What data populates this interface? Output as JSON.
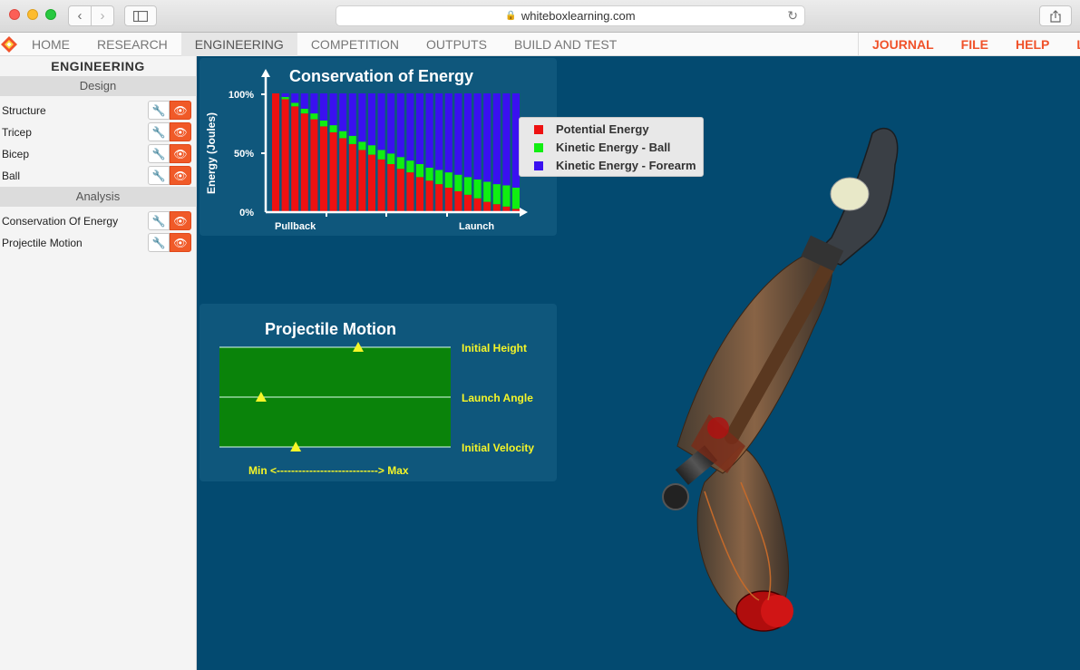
{
  "browser": {
    "url": "whiteboxlearning.com",
    "lock_icon": "lock-icon",
    "back_icon": "chevron-left-icon",
    "forward_icon": "chevron-right-icon",
    "sidebar_icon": "sidebar-toggle-icon",
    "share_icon": "share-icon",
    "reload_icon": "reload-icon"
  },
  "nav": {
    "items": [
      {
        "label": "HOME"
      },
      {
        "label": "RESEARCH"
      },
      {
        "label": "ENGINEERING",
        "active": true
      },
      {
        "label": "COMPETITION"
      },
      {
        "label": "OUTPUTS"
      },
      {
        "label": "BUILD AND TEST"
      }
    ],
    "right_items": [
      {
        "label": "JOURNAL"
      },
      {
        "label": "FILE"
      },
      {
        "label": "HELP"
      },
      {
        "label": "L"
      }
    ],
    "accent": "#f0522a"
  },
  "sidebar": {
    "title": "ENGINEERING",
    "sections": [
      {
        "label": "Design",
        "items": [
          {
            "label": "Structure"
          },
          {
            "label": "Tricep"
          },
          {
            "label": "Bicep"
          },
          {
            "label": "Ball"
          }
        ]
      },
      {
        "label": "Analysis",
        "items": [
          {
            "label": "Conservation Of Energy"
          },
          {
            "label": "Projectile Motion"
          }
        ]
      }
    ],
    "wrench_icon": "wrench-icon",
    "eye_icon": "eye-icon",
    "eye_color": "#f05a28"
  },
  "energy_panel": {
    "title": "Conservation of Energy",
    "legend": [
      {
        "label": "Potential Energy",
        "color": "#ee1111"
      },
      {
        "label": "Kinetic Energy - Ball",
        "color": "#11ee11"
      },
      {
        "label": "Kinetic Energy - Forearm",
        "color": "#3a10f0"
      }
    ]
  },
  "chart_data": {
    "type": "bar",
    "stacked": true,
    "title": "Conservation of Energy",
    "ylabel": "Energy (Joules)",
    "xlabel": "",
    "x_tick_labels": [
      "Pullback",
      "Launch"
    ],
    "y_tick_labels": [
      "100%",
      "50%",
      "0%"
    ],
    "ylim": [
      0,
      100
    ],
    "series": [
      {
        "name": "Potential Energy",
        "color": "#ee1111",
        "values": [
          100,
          95,
          89,
          83,
          78,
          72,
          67,
          62,
          57,
          52,
          48,
          44,
          40,
          36,
          33,
          29,
          26,
          23,
          20,
          17,
          14,
          11,
          8,
          6,
          4,
          2
        ]
      },
      {
        "name": "Kinetic Energy - Ball",
        "color": "#11ee11",
        "values": [
          0,
          2,
          3,
          4,
          5,
          5,
          6,
          6,
          7,
          7,
          8,
          8,
          9,
          10,
          10,
          11,
          11,
          12,
          13,
          14,
          15,
          16,
          17,
          17,
          18,
          18
        ]
      },
      {
        "name": "Kinetic Energy - Forearm",
        "color": "#3a10f0",
        "values": [
          0,
          3,
          8,
          13,
          17,
          23,
          27,
          32,
          36,
          41,
          44,
          48,
          51,
          54,
          57,
          60,
          63,
          65,
          67,
          69,
          71,
          73,
          75,
          77,
          78,
          80
        ]
      }
    ]
  },
  "projectile_panel": {
    "title": "Projectile Motion",
    "params": [
      {
        "label": "Initial Height",
        "value": 0.6
      },
      {
        "label": "Launch Angle",
        "value": 0.18
      },
      {
        "label": "Initial Velocity",
        "value": 0.33
      }
    ],
    "axis_label": "Min <----------------------------> Max",
    "marker_color": "#f5f528"
  },
  "scene": {
    "description_icon": "robot-arm-model"
  }
}
